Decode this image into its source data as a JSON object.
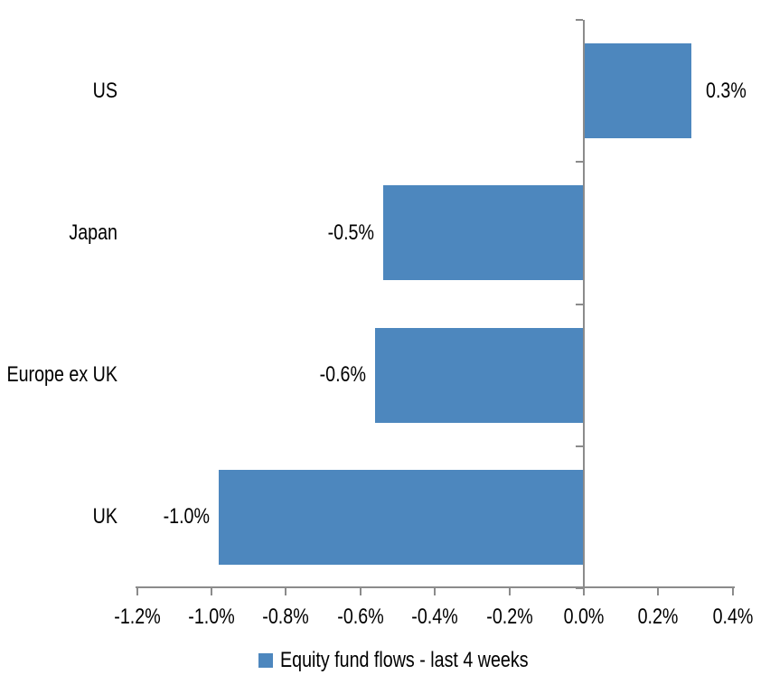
{
  "chart_data": {
    "type": "bar",
    "orientation": "horizontal",
    "title": "",
    "xlabel": "",
    "ylabel": "",
    "categories": [
      "US",
      "Japan",
      "Europe ex UK",
      "UK"
    ],
    "values": [
      0.29,
      -0.54,
      -0.56,
      -0.98
    ],
    "data_labels": [
      "0.3%",
      "-0.5%",
      "-0.6%",
      "-1.0%"
    ],
    "series_name": "Equity fund flows - last 4 weeks",
    "xlim": [
      -1.2,
      0.4
    ],
    "xticks": {
      "values": [
        -1.2,
        -1.0,
        -0.8,
        -0.6,
        -0.4,
        -0.2,
        0.0,
        0.2,
        0.4
      ],
      "labels": [
        "-1.2%",
        "-1.0%",
        "-0.8%",
        "-0.6%",
        "-0.4%",
        "-0.2%",
        "0.0%",
        "0.2%",
        "0.4%"
      ]
    },
    "grid": false,
    "legend_position": "bottom",
    "bar_color": "#4D87BE",
    "axis_color": "#8B8B8B",
    "text_color": "#000000"
  },
  "legend": {
    "label": "Equity fund flows - last 4 weeks"
  }
}
